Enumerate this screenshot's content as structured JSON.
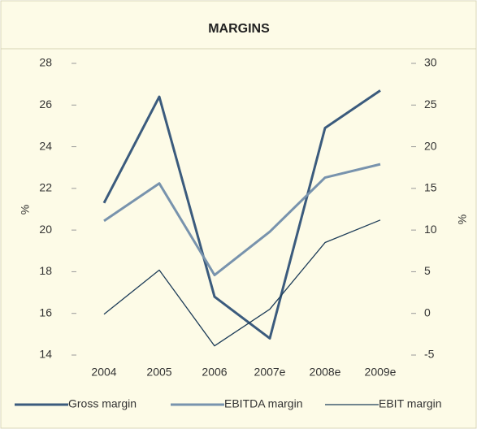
{
  "chart_data": {
    "type": "line",
    "title": "MARGINS",
    "categories": [
      "2004",
      "2005",
      "2006",
      "2007e",
      "2008e",
      "2009e"
    ],
    "ylabel": "%",
    "y2label": "%",
    "ylim": [
      14,
      28
    ],
    "yticks": [
      14,
      16,
      18,
      20,
      22,
      24,
      26,
      28
    ],
    "y2lim": [
      -5,
      30
    ],
    "y2ticks": [
      -5,
      0,
      5,
      10,
      15,
      20,
      25,
      30
    ],
    "grid": false,
    "legend": "bottom",
    "series": [
      {
        "name": "Gross margin",
        "color": "#3b5b7d",
        "values": [
          21.3,
          26.4,
          16.8,
          14.8,
          24.9,
          26.7
        ]
      },
      {
        "name": "EBITDA margin",
        "color": "#7893ad",
        "axis": "y2",
        "values": [
          11.1,
          15.6,
          4.6,
          9.8,
          16.3,
          17.9
        ]
      },
      {
        "name": "EBIT margin",
        "color": "#1d3c58",
        "axis": "y2",
        "values": [
          -0.1,
          5.2,
          -3.9,
          0.5,
          8.5,
          11.2
        ]
      }
    ]
  }
}
